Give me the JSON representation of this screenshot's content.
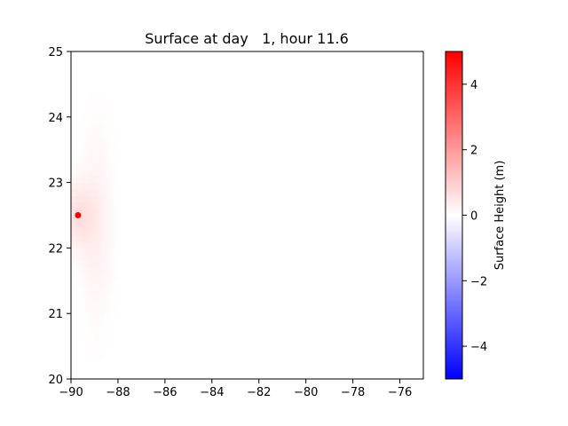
{
  "chart_data": {
    "type": "heatmap",
    "title": "Surface at day   1, hour 11.6",
    "xlabel": "",
    "ylabel": "",
    "xlim": [
      -90,
      -75
    ],
    "ylim": [
      20,
      25
    ],
    "x_ticks": [
      -90,
      -88,
      -86,
      -84,
      -82,
      -80,
      -78,
      -76
    ],
    "y_ticks": [
      20,
      21,
      22,
      23,
      24,
      25
    ],
    "grid": false,
    "colormap": "bwr",
    "colors": {
      "low": "#0000ff",
      "mid": "#ffffff",
      "high": "#ff0000"
    },
    "colorbar": {
      "label": "Surface Height (m)",
      "range": [
        -5,
        5
      ],
      "ticks": [
        4,
        2,
        0,
        -2,
        -4
      ],
      "tick_labels": [
        "4",
        "2",
        "0",
        "−2",
        "−4"
      ],
      "placement": "right"
    },
    "field_features": [
      {
        "kind": "gaussian-bump",
        "center": [
          -89.7,
          22.5
        ],
        "peak_height": 0.6,
        "spread_lon": 0.45,
        "spread_lat": 0.35
      },
      {
        "kind": "gaussian-bump",
        "center": [
          -88.9,
          22.35
        ],
        "peak_height": 0.3,
        "spread_lon": 0.45,
        "spread_lat": 0.9
      }
    ],
    "markers": [
      {
        "lon": -89.7,
        "lat": 22.5,
        "color": "#ff0000"
      }
    ]
  }
}
